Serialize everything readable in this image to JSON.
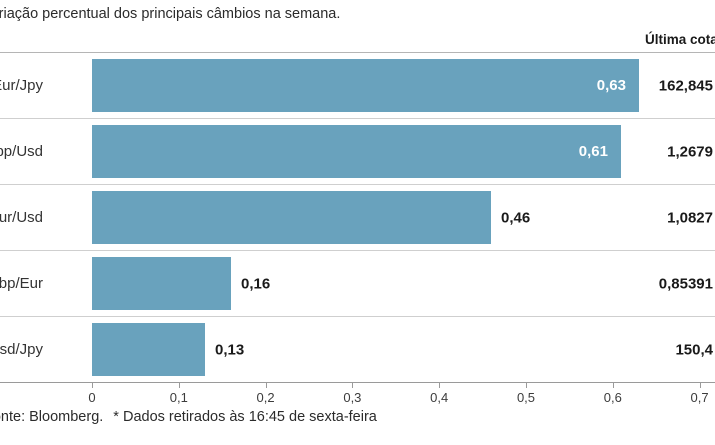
{
  "header": {
    "title": "Variação percentual dos principais câmbios na semana.",
    "right_column_label": "Última cotação"
  },
  "chart_data": {
    "type": "bar",
    "orientation": "horizontal",
    "title": "Variação percentual dos principais câmbios na semana.",
    "categories": [
      "Eur/Jpy",
      "Gbp/Usd",
      "Eur/Usd",
      "Gbp/Eur",
      "Usd/Jpy"
    ],
    "values": [
      0.63,
      0.61,
      0.46,
      0.16,
      0.13
    ],
    "value_labels": [
      "0,63",
      "0,61",
      "0,46",
      "0,16",
      "0,13"
    ],
    "value_label_inside": [
      true,
      true,
      false,
      false,
      false
    ],
    "last_quotes": [
      "162,845",
      "1,2679",
      "1,0827",
      "0,85391",
      "150,4"
    ],
    "xlabel": "",
    "ylabel": "",
    "xlim": [
      0,
      0.7
    ],
    "x_ticks": [
      "0",
      "0,1",
      "0,2",
      "0,3",
      "0,4",
      "0,5",
      "0,6",
      "0,7"
    ],
    "x_tick_values": [
      0,
      0.1,
      0.2,
      0.3,
      0.4,
      0.5,
      0.6,
      0.7
    ],
    "grid": false,
    "legend": false,
    "bar_color": "#69a2bd"
  },
  "footer": {
    "source": "Fonte: Bloomberg.",
    "note": "* Dados retirados às 16:45 de sexta-feira"
  }
}
